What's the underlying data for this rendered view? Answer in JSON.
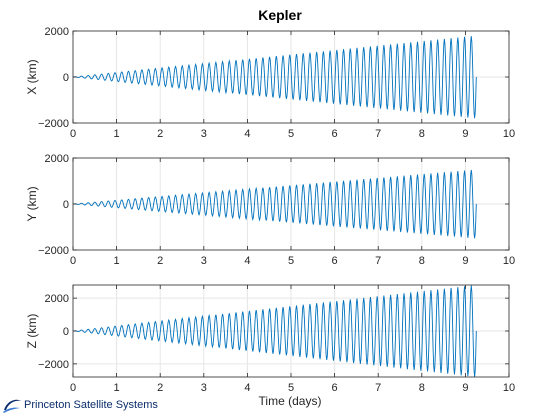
{
  "chart_data": {
    "type": "line",
    "title": "Kepler",
    "xlabel": "Time (days)",
    "line_color": "#0072BD",
    "grid": true,
    "subplots": [
      {
        "name": "x-subplot",
        "ylabel": "X (km)",
        "xlim": [
          0,
          10
        ],
        "ylim": [
          -2000,
          2000
        ],
        "xticks": [
          0,
          1,
          2,
          3,
          4,
          5,
          6,
          7,
          8,
          9,
          10
        ],
        "yticks": [
          -2000,
          0,
          2000
        ],
        "envelope": {
          "t": [
            0,
            9.25
          ],
          "amplitude": [
            0,
            1800
          ]
        },
        "oscillation_cycles": 60
      },
      {
        "name": "y-subplot",
        "ylabel": "Y (km)",
        "xlim": [
          0,
          10
        ],
        "ylim": [
          -2000,
          2000
        ],
        "xticks": [
          0,
          1,
          2,
          3,
          4,
          5,
          6,
          7,
          8,
          9,
          10
        ],
        "yticks": [
          -2000,
          0,
          2000
        ],
        "envelope": {
          "t": [
            0,
            9.25
          ],
          "amplitude": [
            0,
            1500
          ]
        },
        "oscillation_cycles": 60
      },
      {
        "name": "z-subplot",
        "ylabel": "Z (km)",
        "xlim": [
          0,
          10
        ],
        "ylim": [
          -2800,
          2800
        ],
        "xticks": [
          0,
          1,
          2,
          3,
          4,
          5,
          6,
          7,
          8,
          9,
          10
        ],
        "yticks": [
          -2000,
          0,
          2000
        ],
        "envelope": {
          "t": [
            0,
            9.25
          ],
          "amplitude": [
            0,
            2800
          ]
        },
        "oscillation_cycles": 60
      }
    ]
  },
  "logo": {
    "text": "Princeton Satellite Systems",
    "icon": "orbit-swoosh-icon",
    "color": "#0b2d6b"
  }
}
